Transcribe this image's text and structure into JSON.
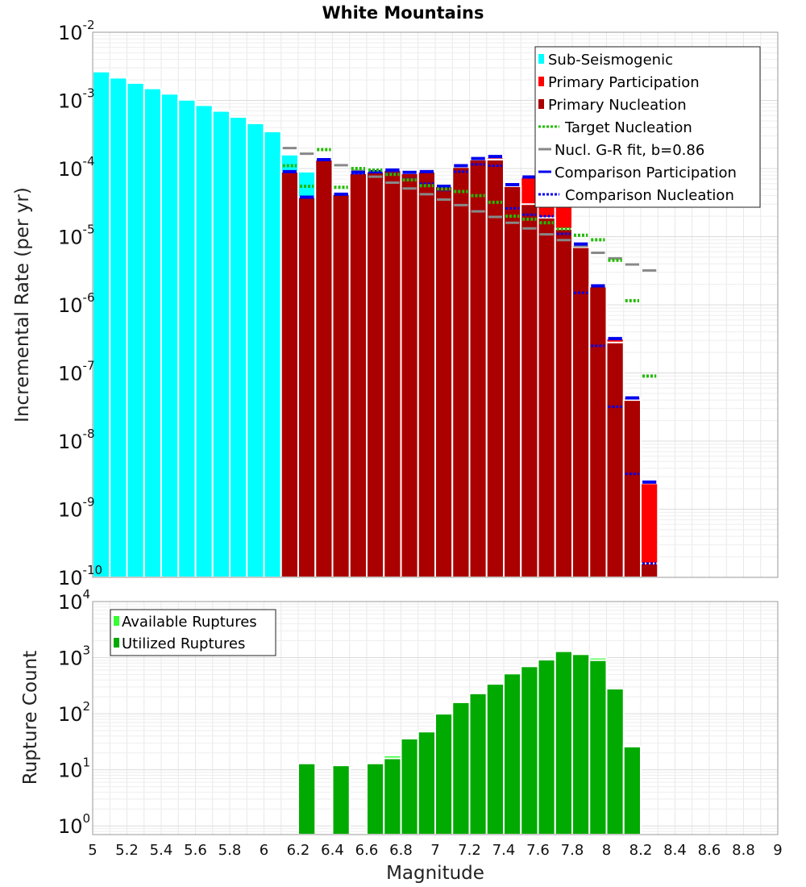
{
  "colors": {
    "sub_seismogenic": "#00ffff",
    "primary_participation": "#ff0000",
    "primary_nucleation": "#aa0000",
    "target_nucleation": "#22bb00",
    "gr_fit": "#888888",
    "comparison_participation": "#0000ee",
    "comparison_nucleation": "#0000ee",
    "available_ruptures": "#33ff33",
    "utilized_ruptures": "#00aa00"
  },
  "chart_data": [
    {
      "type": "bar",
      "title": "White Mountains",
      "xlabel": "Magnitude",
      "ylabel": "Incremental Rate (per yr)",
      "xlim": [
        5,
        9
      ],
      "ylim": [
        1e-10,
        0.01
      ],
      "yscale": "log",
      "y_tick_labels": [
        {
          "base": "10",
          "exp": "-10",
          "value": 1e-10
        },
        {
          "base": "10",
          "exp": "-9",
          "value": 1e-09
        },
        {
          "base": "10",
          "exp": "-8",
          "value": 1e-08
        },
        {
          "base": "10",
          "exp": "-7",
          "value": 1e-07
        },
        {
          "base": "10",
          "exp": "-6",
          "value": 1e-06
        },
        {
          "base": "10",
          "exp": "-5",
          "value": 1e-05
        },
        {
          "base": "10",
          "exp": "-4",
          "value": 0.0001
        },
        {
          "base": "10",
          "exp": "-3",
          "value": 0.001
        },
        {
          "base": "10",
          "exp": "-2",
          "value": 0.01
        }
      ],
      "bar_width": 0.1,
      "legend_position": "top-right",
      "legend": [
        {
          "label": "Sub-Seismogenic",
          "color_key": "sub_seismogenic",
          "style": "box"
        },
        {
          "label": "Primary Participation",
          "color_key": "primary_participation",
          "style": "box"
        },
        {
          "label": "Primary Nucleation",
          "color_key": "primary_nucleation",
          "style": "box"
        },
        {
          "label": "Target Nucleation",
          "color_key": "target_nucleation",
          "style": "dotted"
        },
        {
          "label": "Nucl. G-R fit, b=0.86",
          "color_key": "gr_fit",
          "style": "solid"
        },
        {
          "label": "Comparison Participation",
          "color_key": "comparison_participation",
          "style": "solid"
        },
        {
          "label": "Comparison Nucleation",
          "color_key": "comparison_nucleation",
          "style": "dotted"
        }
      ],
      "series": [
        {
          "name": "Sub-Seismogenic",
          "color_key": "sub_seismogenic",
          "x": [
            5.05,
            5.15,
            5.25,
            5.35,
            5.45,
            5.55,
            5.65,
            5.75,
            5.85,
            5.95,
            6.05,
            6.15,
            6.25
          ],
          "values": [
            0.00265,
            0.00215,
            0.0018,
            0.0015,
            0.00125,
            0.00102,
            0.00085,
            0.0007,
            0.00057,
            0.00046,
            0.00035,
            0.00016,
            9e-05
          ]
        },
        {
          "name": "Primary Participation",
          "color_key": "primary_participation",
          "x": [
            6.15,
            6.25,
            6.35,
            6.45,
            6.55,
            6.65,
            6.75,
            6.85,
            6.95,
            7.05,
            7.15,
            7.25,
            7.35,
            7.45,
            7.55,
            7.65,
            7.75,
            7.85,
            7.95,
            8.05,
            8.15,
            8.25
          ],
          "values": [
            9e-05,
            3.8e-05,
            0.000135,
            4.2e-05,
            8.5e-05,
            9e-05,
            9.5e-05,
            8.5e-05,
            9e-05,
            5.5e-05,
            0.000105,
            0.000135,
            0.000145,
            5.8e-05,
            7.5e-05,
            6.5e-05,
            4.2e-05,
            7.5e-06,
            1.85e-06,
            3.2e-07,
            4.3e-08,
            2.4e-09
          ]
        },
        {
          "name": "Primary Nucleation",
          "color_key": "primary_nucleation",
          "x": [
            6.15,
            6.25,
            6.35,
            6.45,
            6.55,
            6.65,
            6.75,
            6.85,
            6.95,
            7.05,
            7.15,
            7.25,
            7.35,
            7.45,
            7.55,
            7.65,
            7.75,
            7.85,
            7.95,
            8.05,
            8.15,
            8.25
          ],
          "values": [
            9e-05,
            3.8e-05,
            0.000135,
            4.2e-05,
            8.5e-05,
            9e-05,
            9.5e-05,
            8.5e-05,
            9e-05,
            5.5e-05,
            0.000105,
            0.000135,
            0.000135,
            5.5e-05,
            3e-05,
            1.9e-05,
            1.3e-05,
            7e-06,
            1.85e-06,
            2.8e-07,
            4e-08,
            1.6e-10
          ]
        },
        {
          "name": "Target Nucleation",
          "color_key": "target_nucleation",
          "x": [
            6.15,
            6.25,
            6.35,
            6.45,
            6.55,
            6.65,
            6.75,
            6.85,
            6.95,
            7.05,
            7.15,
            7.25,
            7.35,
            7.45,
            7.55,
            7.65,
            7.75,
            7.85,
            7.95,
            8.05,
            8.15,
            8.25
          ],
          "values": [
            0.00011,
            5.5e-05,
            0.00019,
            5.3e-05,
            0.0001,
            9.5e-05,
            8.2e-05,
            6.8e-05,
            5.6e-05,
            5e-05,
            4.6e-05,
            4e-05,
            3.2e-05,
            2e-05,
            1.8e-05,
            1.6e-05,
            1.3e-05,
            1.05e-05,
            9e-06,
            4.5e-06,
            1.15e-06,
            9e-08
          ]
        },
        {
          "name": "Nucl. G-R fit, b=0.86",
          "color_key": "gr_fit",
          "x": [
            6.15,
            6.25,
            6.35,
            6.45,
            6.55,
            6.65,
            6.75,
            6.85,
            6.95,
            7.05,
            7.15,
            7.25,
            7.35,
            7.45,
            7.55,
            7.65,
            7.75,
            7.85,
            7.95,
            8.05,
            8.15,
            8.25
          ],
          "values": [
            0.0002,
            0.000165,
            0.000135,
            0.000112,
            9.2e-05,
            7.6e-05,
            6.2e-05,
            5.1e-05,
            4.2e-05,
            3.5e-05,
            2.9e-05,
            2.35e-05,
            1.95e-05,
            1.6e-05,
            1.32e-05,
            1.08e-05,
            8.9e-06,
            7.3e-06,
            5.8e-06,
            4.8e-06,
            3.9e-06,
            3.2e-06
          ]
        },
        {
          "name": "Comparison Participation",
          "color_key": "comparison_participation",
          "x": [
            6.15,
            6.25,
            6.35,
            6.45,
            6.55,
            6.65,
            6.75,
            6.85,
            6.95,
            7.05,
            7.15,
            7.25,
            7.35,
            7.45,
            7.55,
            7.65,
            7.75,
            7.85,
            7.95,
            8.05,
            8.15,
            8.25
          ],
          "values": [
            9e-05,
            3.8e-05,
            0.000135,
            4.2e-05,
            8.8e-05,
            9e-05,
            9.5e-05,
            8.8e-05,
            9e-05,
            5.5e-05,
            0.00011,
            0.00014,
            0.00015,
            5.8e-05,
            7.5e-05,
            7.5e-05,
            4.3e-05,
            7.8e-06,
            1.9e-06,
            3.2e-07,
            4.3e-08,
            2.5e-09
          ]
        },
        {
          "name": "Comparison Nucleation",
          "color_key": "comparison_nucleation",
          "x": [
            6.15,
            6.25,
            6.35,
            6.45,
            6.55,
            6.65,
            6.75,
            6.85,
            6.95,
            7.05,
            7.15,
            7.25,
            7.35,
            7.45,
            7.55,
            7.65,
            7.75,
            7.85,
            7.95,
            8.05,
            8.15,
            8.25
          ],
          "values": [
            9e-05,
            3.8e-05,
            0.000135,
            4.2e-05,
            8.5e-05,
            8.8e-05,
            8.5e-05,
            7e-05,
            6e-05,
            4.8e-05,
            9e-05,
            0.000115,
            0.00011,
            2.6e-05,
            2.1e-05,
            2e-05,
            1.1e-05,
            1.5e-06,
            2.5e-07,
            3.2e-08,
            3.3e-09,
            1.6e-10
          ]
        }
      ]
    },
    {
      "type": "bar",
      "title": "",
      "xlabel": "Magnitude",
      "ylabel": "Rupture Count",
      "xlim": [
        5,
        9
      ],
      "ylim": [
        0.7,
        10000
      ],
      "yscale": "log",
      "y_tick_labels": [
        {
          "base": "10",
          "exp": "0",
          "value": 1
        },
        {
          "base": "10",
          "exp": "1",
          "value": 10
        },
        {
          "base": "10",
          "exp": "2",
          "value": 100
        },
        {
          "base": "10",
          "exp": "3",
          "value": 1000
        },
        {
          "base": "10",
          "exp": "4",
          "value": 10000
        }
      ],
      "x_tick_labels": [
        "5",
        "5.2",
        "5.4",
        "5.6",
        "5.8",
        "6",
        "6.2",
        "6.4",
        "6.6",
        "6.8",
        "7",
        "7.2",
        "7.4",
        "7.6",
        "7.8",
        "8",
        "8.2",
        "8.4",
        "8.6",
        "8.8",
        "9"
      ],
      "bar_width": 0.1,
      "legend_position": "top-left",
      "legend": [
        {
          "label": "Available Ruptures",
          "color_key": "available_ruptures",
          "style": "box"
        },
        {
          "label": "Utilized Ruptures",
          "color_key": "utilized_ruptures",
          "style": "box"
        }
      ],
      "series": [
        {
          "name": "Available Ruptures",
          "color_key": "available_ruptures",
          "x": [
            6.25,
            6.45,
            6.65,
            6.75,
            6.85,
            6.95,
            7.05,
            7.15,
            7.25,
            7.35,
            7.45,
            7.55,
            7.65,
            7.75,
            7.85,
            7.95,
            8.05,
            8.15
          ],
          "values": [
            13,
            12,
            13,
            18,
            36,
            48,
            100,
            160,
            230,
            340,
            520,
            700,
            920,
            1300,
            1150,
            1000,
            280,
            26
          ]
        },
        {
          "name": "Utilized Ruptures",
          "color_key": "utilized_ruptures",
          "x": [
            6.25,
            6.45,
            6.65,
            6.75,
            6.85,
            6.95,
            7.05,
            7.15,
            7.25,
            7.35,
            7.45,
            7.55,
            7.65,
            7.75,
            7.85,
            7.95,
            8.05,
            8.15
          ],
          "values": [
            13,
            12,
            13,
            16,
            36,
            48,
            100,
            160,
            230,
            340,
            520,
            700,
            920,
            1300,
            1150,
            900,
            280,
            26
          ]
        }
      ]
    }
  ]
}
